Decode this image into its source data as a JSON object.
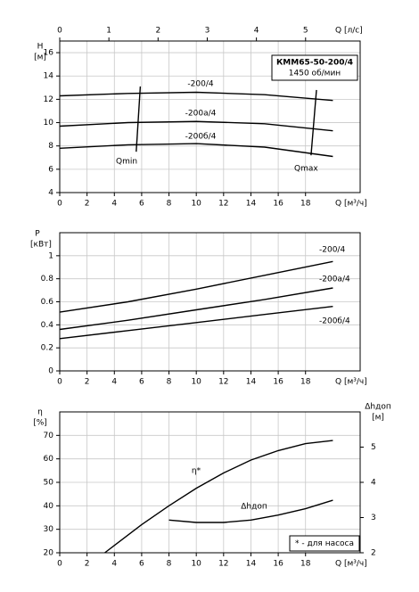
{
  "chart_data": [
    {
      "type": "line",
      "title": "КММ65-50-200/4",
      "subtitle": "1450 об/мин",
      "y_label": "H",
      "y_unit": "[м]",
      "x_label": "Q [м³/ч]",
      "x2_label": "Q [л/с]",
      "xlim": [
        0,
        22
      ],
      "xticks": [
        0,
        2,
        4,
        6,
        8,
        10,
        12,
        14,
        16,
        18
      ],
      "x2lim": [
        0,
        6.11
      ],
      "x2ticks": [
        0,
        1,
        2,
        3,
        4,
        5
      ],
      "ylim": [
        4,
        17
      ],
      "yticks": [
        4,
        6,
        8,
        10,
        12,
        14,
        16
      ],
      "grid": true,
      "series": [
        {
          "name": "-200/4",
          "color": "#000000",
          "x": [
            0,
            5,
            10,
            15,
            20
          ],
          "values": [
            12.3,
            12.5,
            12.6,
            12.4,
            11.9
          ]
        },
        {
          "name": "-200а/4",
          "color": "#000000",
          "x": [
            0,
            5,
            10,
            15,
            20
          ],
          "values": [
            9.7,
            10.0,
            10.1,
            9.9,
            9.3
          ]
        },
        {
          "name": "-200б/4",
          "color": "#000000",
          "x": [
            0,
            5,
            10,
            15,
            20
          ],
          "values": [
            7.8,
            8.1,
            8.2,
            7.9,
            7.1
          ]
        },
        {
          "name": "Qmin",
          "color": "#000000",
          "x": [
            5.6,
            5.9
          ],
          "values": [
            7.5,
            13.1
          ]
        },
        {
          "name": "Qmax",
          "color": "#000000",
          "x": [
            18.4,
            18.8
          ],
          "values": [
            7.2,
            12.8
          ]
        }
      ]
    },
    {
      "type": "line",
      "y_label": "P",
      "y_unit": "[кВт]",
      "x_label": "Q [м³/ч]",
      "xlim": [
        0,
        22
      ],
      "xticks": [
        0,
        2,
        4,
        6,
        8,
        10,
        12,
        14,
        16,
        18
      ],
      "ylim": [
        0,
        1.2
      ],
      "yticks": [
        0,
        0.2,
        0.4,
        0.6,
        0.8,
        1
      ],
      "grid": true,
      "series": [
        {
          "name": "-200/4",
          "color": "#000000",
          "x": [
            0,
            5,
            10,
            15,
            20
          ],
          "values": [
            0.51,
            0.6,
            0.71,
            0.83,
            0.95
          ]
        },
        {
          "name": "-200а/4",
          "color": "#000000",
          "x": [
            0,
            5,
            10,
            15,
            20
          ],
          "values": [
            0.36,
            0.44,
            0.53,
            0.62,
            0.72
          ]
        },
        {
          "name": "-200б/4",
          "color": "#000000",
          "x": [
            0,
            5,
            10,
            15,
            20
          ],
          "values": [
            0.28,
            0.35,
            0.42,
            0.49,
            0.56
          ]
        }
      ]
    },
    {
      "type": "line",
      "y_label": "η",
      "y_unit": "[%]",
      "y2_label": "Δhдоп",
      "y2_unit": "[м]",
      "x_label": "Q [м³/ч]",
      "note": "* - для насоса",
      "xlim": [
        0,
        22
      ],
      "xticks": [
        0,
        2,
        4,
        6,
        8,
        10,
        12,
        14,
        16,
        18
      ],
      "ylim": [
        20,
        80
      ],
      "yticks": [
        20,
        30,
        40,
        50,
        60,
        70
      ],
      "y2lim": [
        2,
        6
      ],
      "y2ticks": [
        2,
        3,
        4,
        5
      ],
      "grid": true,
      "series": [
        {
          "name": "η*",
          "color": "#000000",
          "x": [
            3.3,
            6,
            8,
            10,
            12,
            14,
            16,
            18,
            20
          ],
          "values": [
            20,
            32,
            40,
            47.5,
            54,
            59.5,
            63.5,
            66.5,
            67.8
          ]
        },
        {
          "name": "Δhдоп",
          "color": "#000000",
          "axis": "y2",
          "x": [
            8,
            10,
            12,
            14,
            16,
            18,
            20
          ],
          "values": [
            2.93,
            2.86,
            2.86,
            2.93,
            3.07,
            3.25,
            3.49
          ]
        }
      ]
    }
  ]
}
